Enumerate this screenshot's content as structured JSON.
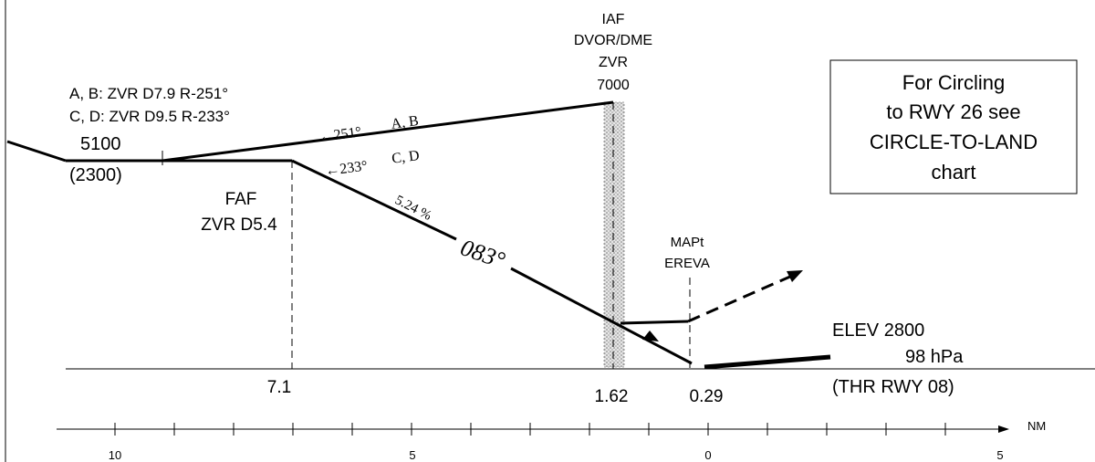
{
  "iaf": {
    "label": "IAF",
    "facility": "DVOR/DME",
    "ident": "ZVR",
    "altitude": "7000"
  },
  "fix_note": {
    "ab": "A, B:  ZVR D7.9 R-251°",
    "cd": "C, D:  ZVR D9.5 R-233°"
  },
  "initial_altitude": {
    "msl": "5100",
    "height": "(2300)"
  },
  "tracks": {
    "ab_arrow": "←251°",
    "ab_cat": "A, B",
    "cd_arrow": "←233°",
    "cd_cat": "C, D"
  },
  "faf": {
    "label": "FAF",
    "distance": "ZVR D5.4"
  },
  "descent": {
    "gradient": "5.24 %",
    "course": "083°"
  },
  "mapt": {
    "label": "MAPt",
    "name": "EREVA"
  },
  "circling_note": {
    "line1": "For Circling",
    "line2": "to RWY 26 see",
    "line3": "CIRCLE-TO-LAND",
    "line4": "chart"
  },
  "threshold": {
    "elev": "ELEV 2800",
    "pressure": "98 hPa",
    "rwy": "(THR RWY 08)"
  },
  "distances": {
    "faf": "7.1",
    "iaf": "1.62",
    "mapt": "0.29"
  },
  "scale": {
    "unit": "NM",
    "ticks": [
      "10",
      "5",
      "0",
      "5"
    ]
  }
}
